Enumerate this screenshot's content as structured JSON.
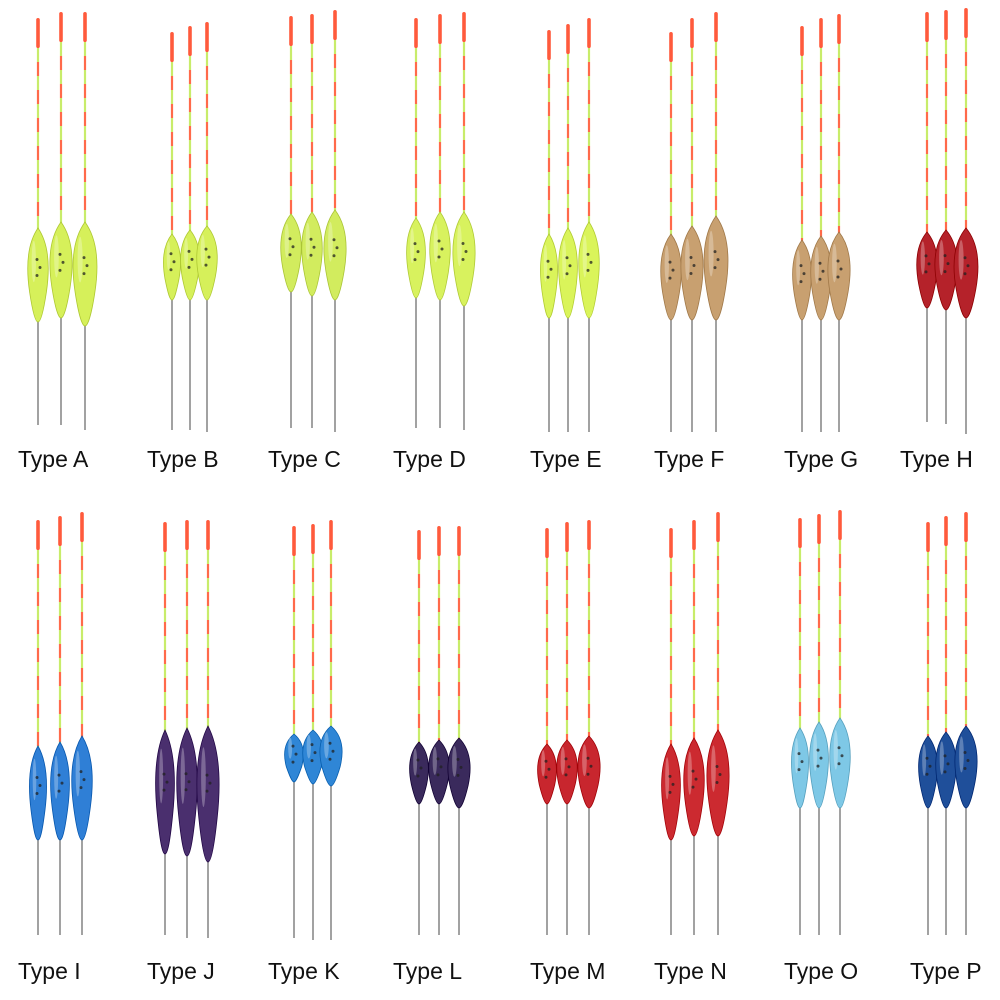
{
  "catalog": {
    "items": [
      {
        "label": "Type A",
        "body_color": "#d6f05a",
        "tip_color": "#ff5a3c",
        "group": "float-group-a"
      },
      {
        "label": "Type B",
        "body_color": "#d6f05a",
        "tip_color": "#ff5a3c",
        "group": "float-group-b"
      },
      {
        "label": "Type C",
        "body_color": "#d2ec5e",
        "tip_color": "#ff5a3c",
        "group": "float-group-c"
      },
      {
        "label": "Type D",
        "body_color": "#d8f25e",
        "tip_color": "#ff5a3c",
        "group": "float-group-d"
      },
      {
        "label": "Type E",
        "body_color": "#daf45a",
        "tip_color": "#ff5a3c",
        "group": "float-group-e"
      },
      {
        "label": "Type F",
        "body_color": "#c8a070",
        "tip_color": "#ff5a3c",
        "group": "float-group-f"
      },
      {
        "label": "Type G",
        "body_color": "#c8a070",
        "tip_color": "#ff5a3c",
        "group": "float-group-g"
      },
      {
        "label": "Type H",
        "body_color": "#b5222a",
        "tip_color": "#ff5a3c",
        "group": "float-group-h"
      },
      {
        "label": "Type I",
        "body_color": "#2f7fd6",
        "tip_color": "#ff5a3c",
        "group": "float-group-i"
      },
      {
        "label": "Type J",
        "body_color": "#4a2f6e",
        "tip_color": "#ff5a3c",
        "group": "float-group-j"
      },
      {
        "label": "Type K",
        "body_color": "#2f86d6",
        "tip_color": "#ff5a3c",
        "group": "float-group-k"
      },
      {
        "label": "Type L",
        "body_color": "#3a2a5c",
        "tip_color": "#ff5a3c",
        "group": "float-group-l"
      },
      {
        "label": "Type M",
        "body_color": "#c8262e",
        "tip_color": "#ff5a3c",
        "group": "float-group-m"
      },
      {
        "label": "Type N",
        "body_color": "#cc2a30",
        "tip_color": "#ff5a3c",
        "group": "float-group-n"
      },
      {
        "label": "Type O",
        "body_color": "#7ec8e6",
        "tip_color": "#ff5a3c",
        "group": "float-group-o"
      },
      {
        "label": "Type P",
        "body_color": "#1f4f9a",
        "tip_color": "#ff5a3c",
        "group": "float-group-p"
      }
    ]
  }
}
